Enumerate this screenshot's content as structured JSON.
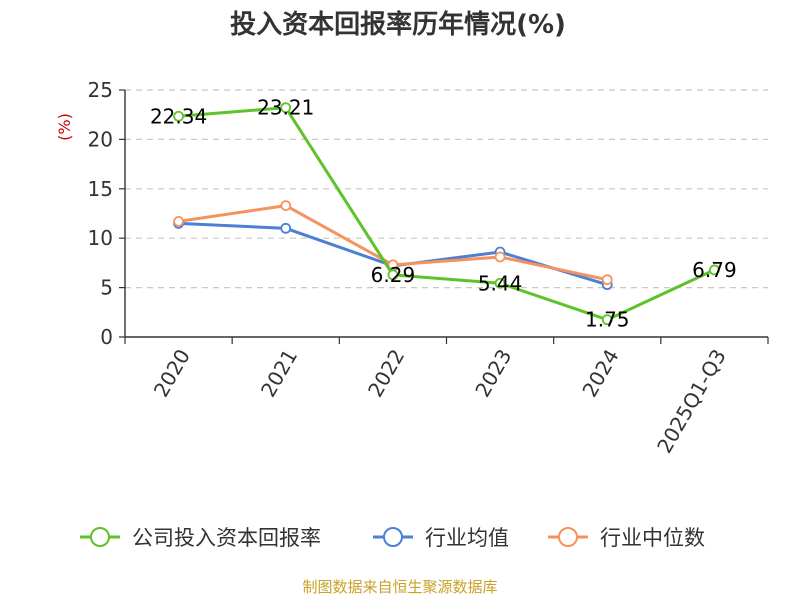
{
  "chart_data": {
    "type": "line",
    "title": "投入资本回报率历年情况(%)",
    "ylabel": "(%)",
    "categories": [
      "2020",
      "2021",
      "2022",
      "2023",
      "2024",
      "2025Q1-Q3"
    ],
    "ylim": [
      0,
      25
    ],
    "yticks": [
      0,
      5,
      10,
      15,
      20,
      25
    ],
    "grid": "horizontal-dashed",
    "legend_position": "bottom",
    "series": [
      {
        "name": "公司投入资本回报率",
        "color": "#5ec22a",
        "values": [
          22.34,
          23.21,
          6.29,
          5.44,
          1.75,
          6.79
        ],
        "show_labels": true
      },
      {
        "name": "行业均值",
        "color": "#4e7fd6",
        "values": [
          11.5,
          11.0,
          7.2,
          8.6,
          5.3,
          null
        ],
        "show_labels": false
      },
      {
        "name": "行业中位数",
        "color": "#f5925e",
        "values": [
          11.7,
          13.3,
          7.3,
          8.1,
          5.8,
          null
        ],
        "show_labels": false
      }
    ],
    "data_labels": [
      "22.34",
      "23.21",
      "6.29",
      "5.44",
      "1.75",
      "6.79"
    ]
  },
  "source": "制图数据来自恒生聚源数据库"
}
